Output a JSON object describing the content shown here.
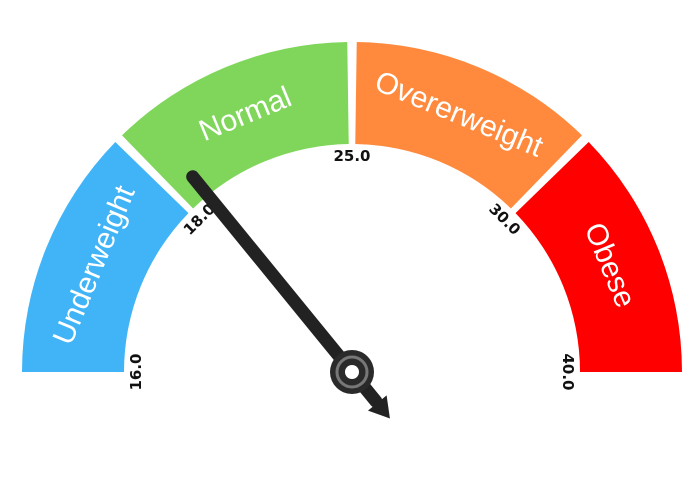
{
  "chart_data": {
    "type": "gauge",
    "min": 16.0,
    "max": 40.0,
    "value": 18.9,
    "segments": [
      {
        "label": "Underweight",
        "from": 16.0,
        "to": 18.0,
        "color": "#40b4f7"
      },
      {
        "label": "Normal",
        "from": 18.0,
        "to": 25.0,
        "color": "#7fd65b"
      },
      {
        "label": "Overerweight",
        "from": 25.0,
        "to": 30.0,
        "color": "#ff8a3d"
      },
      {
        "label": "Obese",
        "from": 30.0,
        "to": 40.0,
        "color": "#ff0000"
      }
    ],
    "ticks": [
      {
        "value": 16.0,
        "label": "16.0"
      },
      {
        "value": 18.0,
        "label": "18.0"
      },
      {
        "value": 25.0,
        "label": "25.0"
      },
      {
        "value": 30.0,
        "label": "30.0"
      },
      {
        "value": 40.0,
        "label": "40.0"
      }
    ],
    "needle_color": "#222222"
  }
}
